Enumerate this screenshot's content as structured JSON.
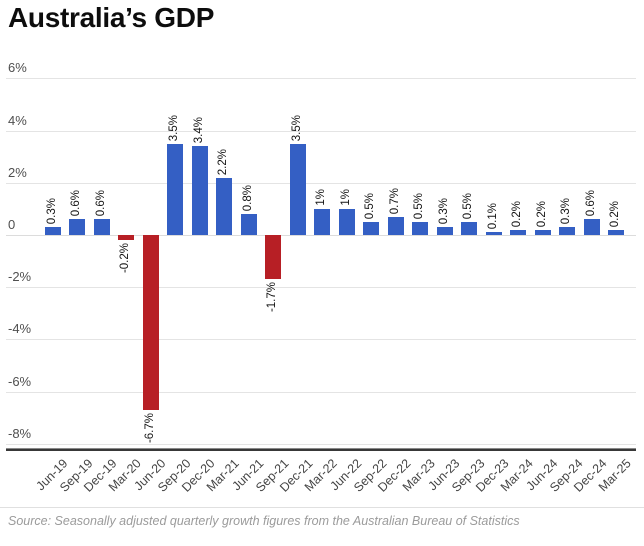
{
  "header": {
    "title": "Australia’s GDP"
  },
  "footer": {
    "source": "Source: Seasonally adjusted quarterly growth figures from the Australian Bureau of Statistics"
  },
  "chart_data": {
    "type": "bar",
    "title": "Australia’s GDP",
    "xlabel": "",
    "ylabel": "",
    "unit": "%",
    "categories": [
      "Jun-19",
      "Sep-19",
      "Dec-19",
      "Mar-20",
      "Jun-20",
      "Sep-20",
      "Dec-20",
      "Mar-21",
      "Jun-21",
      "Sep-21",
      "Dec-21",
      "Mar-22",
      "Jun-22",
      "Sep-22",
      "Dec-22",
      "Mar-23",
      "Jun-23",
      "Sep-23",
      "Dec-23",
      "Mar-24",
      "Jun-24",
      "Sep-24",
      "Dec-24",
      "Mar-25"
    ],
    "values": [
      0.3,
      0.6,
      0.6,
      -0.2,
      -6.7,
      3.5,
      3.4,
      2.2,
      0.8,
      -1.7,
      3.5,
      1,
      1,
      0.5,
      0.7,
      0.5,
      0.3,
      0.5,
      0.1,
      0.2,
      0.2,
      0.3,
      0.6,
      0.2
    ],
    "bar_labels": [
      "0.3%",
      "0.6%",
      "0.6%",
      "-0.2%",
      "-6.7%",
      "3.5%",
      "3.4%",
      "2.2%",
      "0.8%",
      "-1.7%",
      "3.5%",
      "1%",
      "1%",
      "0.5%",
      "0.7%",
      "0.5%",
      "0.3%",
      "0.5%",
      "0.1%",
      "0.2%",
      "0.2%",
      "0.3%",
      "0.6%",
      "0.2%"
    ],
    "yticks": [
      6,
      4,
      2,
      0,
      -2,
      -4,
      -6,
      -8
    ],
    "ytick_labels": [
      "6%",
      "4%",
      "2%",
      "0",
      "-2%",
      "-4%",
      "-6%",
      "-8%"
    ],
    "ylim": [
      -8.8,
      6.9
    ],
    "grid": true,
    "legend": false,
    "colors": {
      "positive": "#345fc4",
      "negative": "#b71f25",
      "grid": "#e4e4e4",
      "axis_top": "#8a8a8a",
      "axis_bottom": "#383838",
      "tick_label": "#4f4f4f",
      "bar_label": "#141414"
    }
  }
}
